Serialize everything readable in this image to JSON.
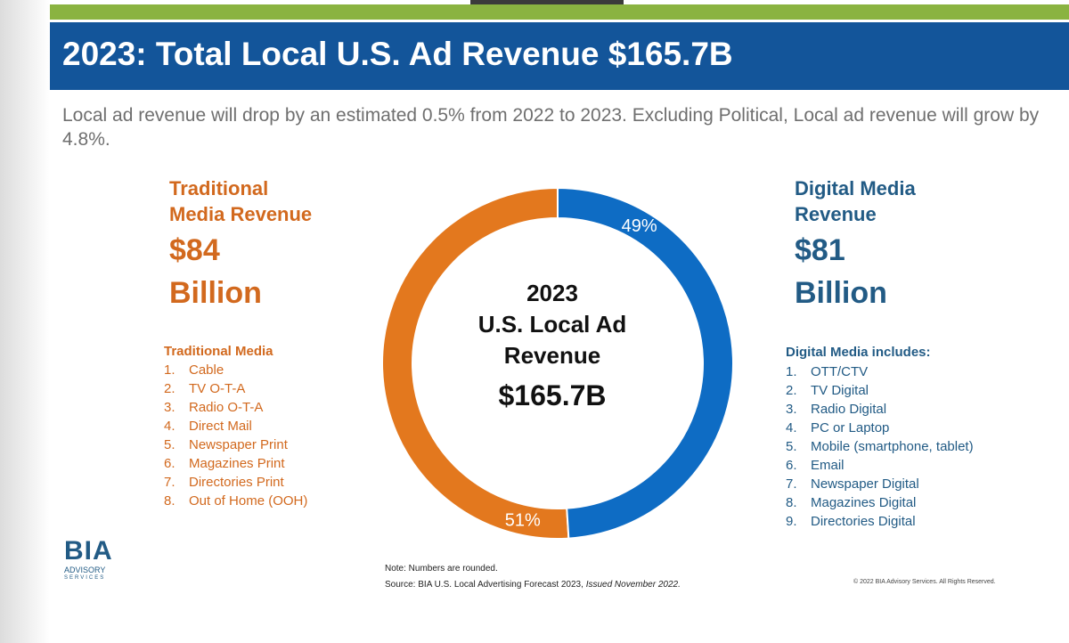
{
  "header": {
    "title": "2023: Total Local U.S. Ad Revenue $165.7B",
    "subtitle": "Local ad revenue will drop by an estimated 0.5% from 2022 to 2023. Excluding Political, Local ad revenue will grow by 4.8%."
  },
  "traditional": {
    "heading_line1": "Traditional",
    "heading_line2": "Media Revenue",
    "amount_line1": "$84",
    "amount_line2": "Billion",
    "list_title": "Traditional Media",
    "items": [
      {
        "num": "1.",
        "label": "Cable"
      },
      {
        "num": "2.",
        "label": "TV O-T-A"
      },
      {
        "num": "3.",
        "label": "Radio O-T-A"
      },
      {
        "num": "4.",
        "label": "Direct Mail"
      },
      {
        "num": "5.",
        "label": "Newspaper Print"
      },
      {
        "num": "6.",
        "label": "Magazines Print"
      },
      {
        "num": "7.",
        "label": "Directories Print"
      },
      {
        "num": "8.",
        "label": "Out of Home (OOH)"
      }
    ]
  },
  "digital": {
    "heading_line1": "Digital Media",
    "heading_line2": "Revenue",
    "amount_line1": "$81",
    "amount_line2": "Billion",
    "list_title": "Digital Media includes:",
    "items": [
      {
        "num": "1.",
        "label": "OTT/CTV"
      },
      {
        "num": "2.",
        "label": "TV Digital"
      },
      {
        "num": "3.",
        "label": "Radio Digital"
      },
      {
        "num": "4.",
        "label": "PC or Laptop"
      },
      {
        "num": "5.",
        "label": "Mobile (smartphone, tablet)"
      },
      {
        "num": "6.",
        "label": "Email"
      },
      {
        "num": "7.",
        "label": "Newspaper Digital"
      },
      {
        "num": "8.",
        "label": "Magazines Digital"
      },
      {
        "num": "9.",
        "label": "Directories Digital"
      }
    ]
  },
  "center": {
    "line1": "2023",
    "line2": "U.S. Local Ad",
    "line3": "Revenue",
    "line4": "$165.7B"
  },
  "chart_data": {
    "type": "pie",
    "variant": "donut",
    "slices": [
      {
        "label": "51%",
        "value": 51,
        "color": "#e3781e"
      },
      {
        "label": "49%",
        "value": 49,
        "color": "#0e6cc4"
      }
    ],
    "start": "top",
    "direction": "counterclockwise"
  },
  "logo": {
    "brand": "BIA",
    "line2": "ADVISORY",
    "line3": "SERVICES"
  },
  "footer": {
    "note": "Note: Numbers are rounded.",
    "source": "Source: BIA U.S. Local Advertising Forecast 2023,",
    "issued": "Issued November 2022.",
    "copyright": "© 2022 BIA Advisory Services. All Rights Reserved."
  },
  "colors": {
    "title_bar": "#13559a",
    "accent_green": "#8ab341",
    "traditional": "#d2691e",
    "digital": "#225b85"
  }
}
